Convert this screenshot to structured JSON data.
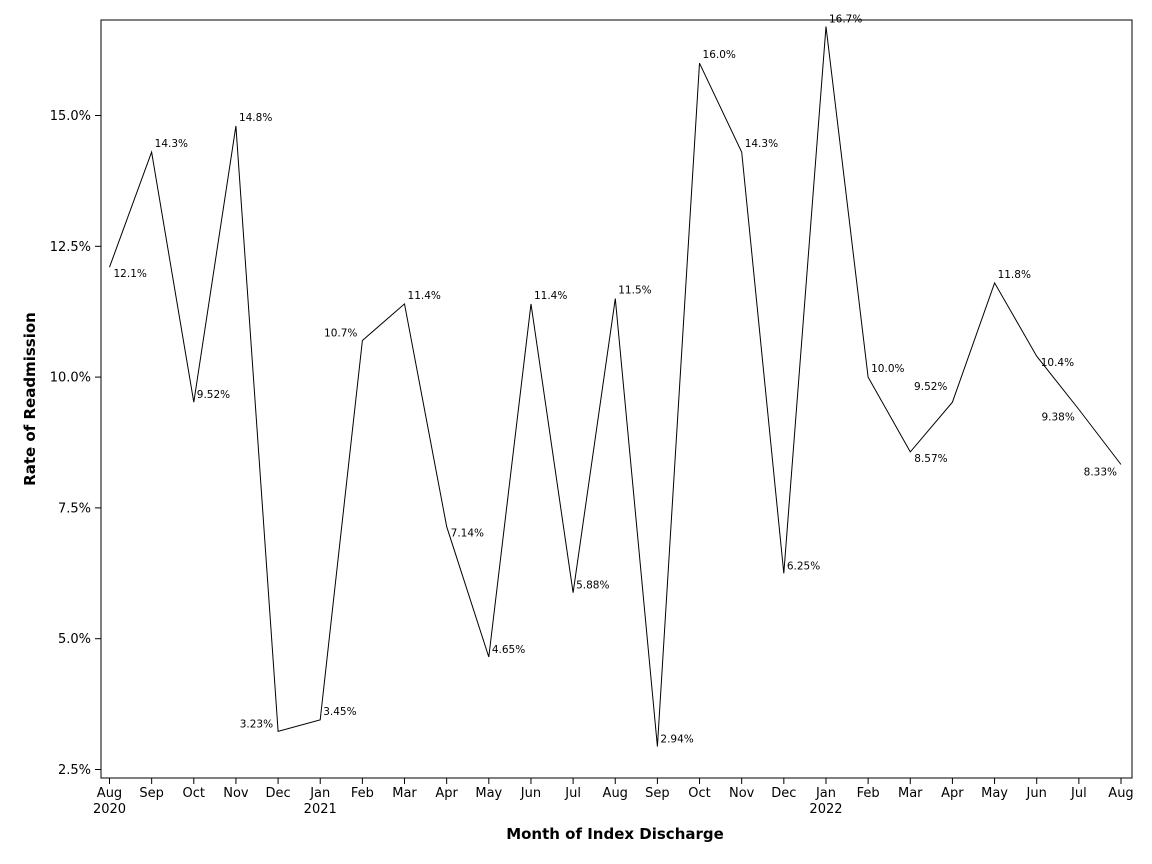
{
  "chart_data": {
    "type": "line",
    "xlabel": "Month of Index Discharge",
    "ylabel": "Rate of Readmission",
    "ylim": [
      2.3,
      16.9
    ],
    "yticks": [
      {
        "value": 2.5,
        "label": "2.5%"
      },
      {
        "value": 5.0,
        "label": "5.0%"
      },
      {
        "value": 7.5,
        "label": "7.5%"
      },
      {
        "value": 10.0,
        "label": "10.0%"
      },
      {
        "value": 12.5,
        "label": "12.5%"
      },
      {
        "value": 15.0,
        "label": "15.0%"
      }
    ],
    "x": [
      "2020-08",
      "2020-09",
      "2020-10",
      "2020-11",
      "2020-12",
      "2021-01",
      "2021-02",
      "2021-03",
      "2021-04",
      "2021-05",
      "2021-06",
      "2021-07",
      "2021-08",
      "2021-09",
      "2021-10",
      "2021-11",
      "2021-12",
      "2022-01",
      "2022-02",
      "2022-03",
      "2022-04",
      "2022-05",
      "2022-06",
      "2022-07",
      "2022-08"
    ],
    "xtick_labels": [
      "Aug",
      "Sep",
      "Oct",
      "Nov",
      "Dec",
      "Jan",
      "Feb",
      "Mar",
      "Apr",
      "May",
      "Jun",
      "Jul",
      "Aug",
      "Sep",
      "Oct",
      "Nov",
      "Dec",
      "Jan",
      "Feb",
      "Mar",
      "Apr",
      "May",
      "Jun",
      "Jul",
      "Aug"
    ],
    "year_labels": [
      {
        "index": 0,
        "label": "2020"
      },
      {
        "index": 5,
        "label": "2021"
      },
      {
        "index": 17,
        "label": "2022"
      }
    ],
    "values": [
      12.1,
      14.3,
      9.52,
      14.8,
      3.23,
      3.45,
      10.7,
      11.4,
      7.14,
      4.65,
      11.4,
      5.88,
      11.5,
      2.94,
      16.0,
      14.3,
      6.25,
      16.7,
      10.0,
      8.57,
      9.52,
      11.8,
      10.4,
      9.38,
      8.33
    ],
    "data_labels": [
      "12.1%",
      "14.3%",
      "9.52%",
      "14.8%",
      "3.23%",
      "3.45%",
      "10.7%",
      "11.4%",
      "7.14%",
      "4.65%",
      "11.4%",
      "5.88%",
      "11.5%",
      "2.94%",
      "16.0%",
      "14.3%",
      "6.25%",
      "16.7%",
      "10.0%",
      "8.57%",
      "9.52%",
      "11.8%",
      "10.4%",
      "9.38%",
      "8.33%"
    ],
    "label_positions": [
      "below-right",
      "above-right",
      "right",
      "above-right",
      "left",
      "above-right",
      "left",
      "above-right",
      "below-right",
      "right",
      "above-right",
      "right",
      "above-right",
      "right",
      "above-right",
      "above-right",
      "right",
      "right",
      "above-right",
      "below-right",
      "above-left",
      "above-right",
      "below-right",
      "below-left",
      "below-left"
    ],
    "grid": false,
    "legend": "none"
  }
}
